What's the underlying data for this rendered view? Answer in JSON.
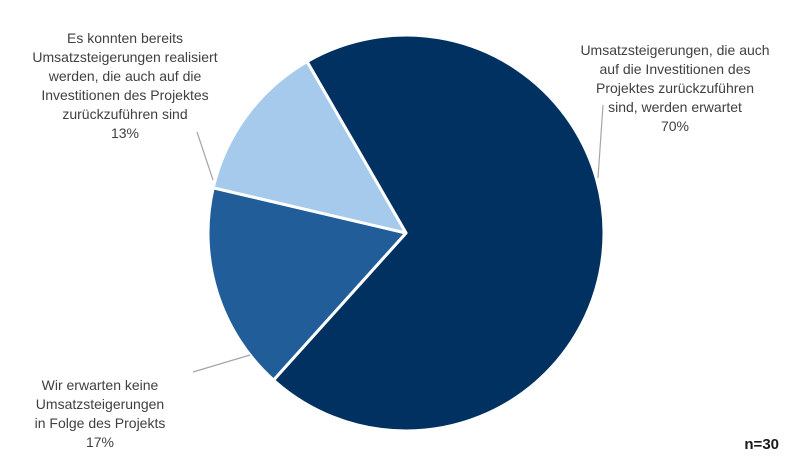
{
  "chart_data": {
    "type": "pie",
    "slices": [
      {
        "label": "Umsatzsteigerungen, die auch\nauf die Investitionen des\nProjektes zurückzuführen\nsind, werden erwartet",
        "value": 70,
        "value_label": "70%",
        "color": "#003161"
      },
      {
        "label": "Wir erwarten keine\nUmsatzsteigerungen\nin Folge des Projekts",
        "value": 17,
        "value_label": "17%",
        "color": "#215E99"
      },
      {
        "label": "Es konnten bereits\nUmsatzsteigerungen realisiert\nwerden, die auch auf die\nInvestitionen des Projektes\nzurückzuführen sind",
        "value": 13,
        "value_label": "13%",
        "color": "#A6CAEC"
      }
    ],
    "note": "n=30"
  }
}
